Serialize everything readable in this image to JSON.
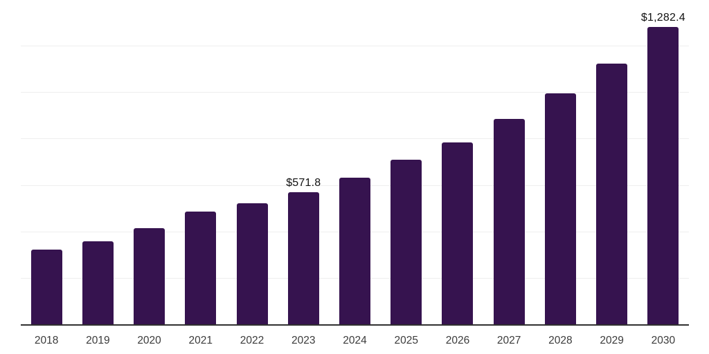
{
  "chart_data": {
    "type": "bar",
    "categories": [
      "2018",
      "2019",
      "2020",
      "2021",
      "2022",
      "2023",
      "2024",
      "2025",
      "2026",
      "2027",
      "2028",
      "2029",
      "2030"
    ],
    "values": [
      325,
      360,
      417,
      490,
      524,
      571.8,
      634,
      712,
      786,
      888,
      999,
      1126,
      1282.4
    ],
    "annotations": [
      {
        "category": "2023",
        "text": "$571.8"
      },
      {
        "category": "2030",
        "text": "$1,282.4"
      }
    ],
    "title": "",
    "xlabel": "",
    "ylabel": "",
    "ylim": [
      0,
      1400
    ],
    "gridline_step": 200,
    "grid": true,
    "legend": false,
    "bar_color": "#36134F",
    "axis_color": "#303030",
    "grid_color": "#eeeeee",
    "value_label_color": "#111111",
    "tick_label_color": "#3b3b3b"
  }
}
